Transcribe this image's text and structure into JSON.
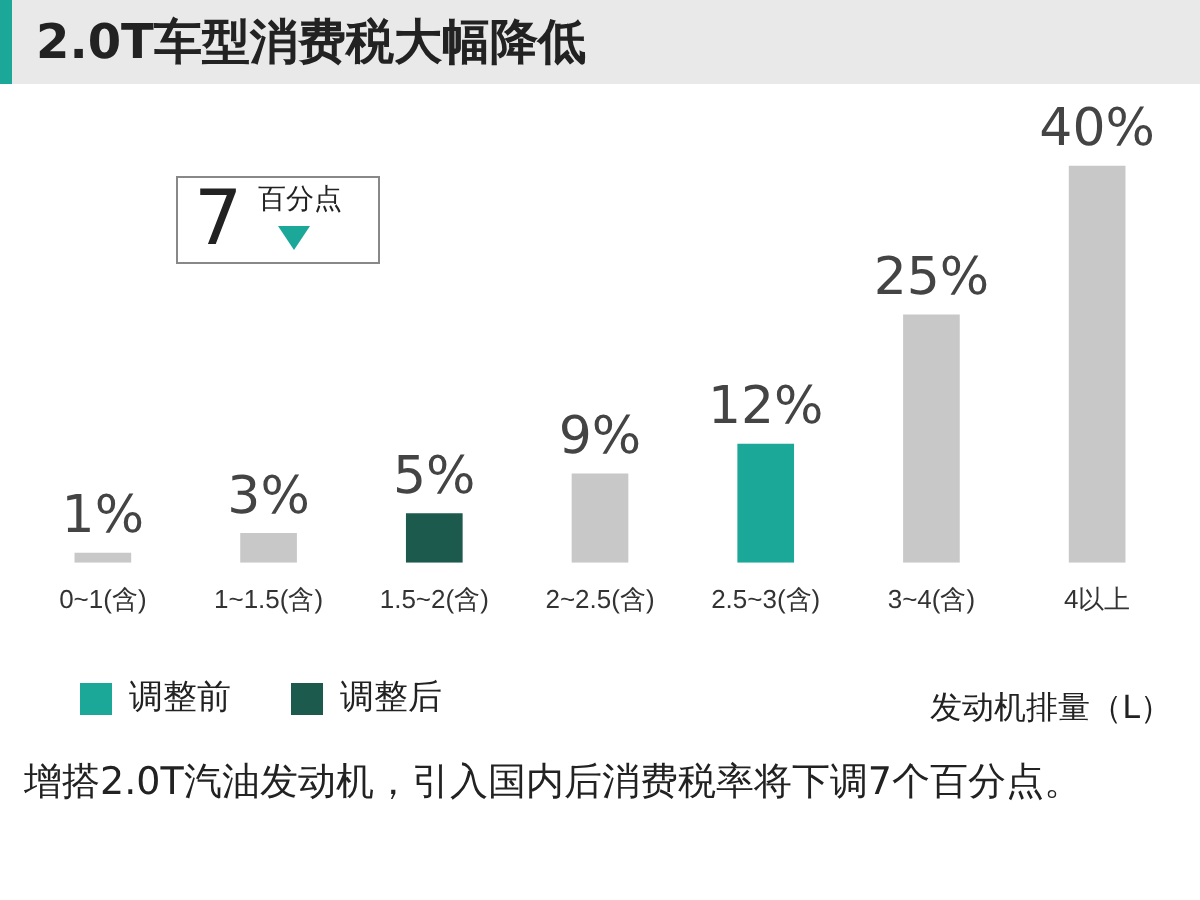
{
  "chart_data": {
    "type": "bar",
    "title": "2.0T车型消费税大幅降低",
    "xlabel": "发动机排量（L）",
    "categories": [
      "0~1(含)",
      "1~1.5(含)",
      "1.5~2(含)",
      "2~2.5(含)",
      "2.5~3(含)",
      "3~4(含)",
      "4以上"
    ],
    "series": [
      {
        "color": "#c8c8c8",
        "values": [
          1,
          3,
          null,
          9,
          null,
          25,
          40
        ],
        "value_labels": [
          "1%",
          "3%",
          null,
          "9%",
          null,
          "25%",
          "40%"
        ]
      },
      {
        "name": "调整前",
        "color": "#1ba898",
        "values": [
          null,
          null,
          null,
          null,
          12,
          null,
          null
        ],
        "value_labels": [
          null,
          null,
          null,
          null,
          "12%",
          null,
          null
        ]
      },
      {
        "name": "调整后",
        "color": "#1b5a4c",
        "values": [
          null,
          null,
          5,
          null,
          null,
          null,
          null
        ],
        "value_labels": [
          null,
          null,
          "5%",
          null,
          null,
          null,
          null
        ]
      }
    ],
    "legend": "bottom left",
    "annotations": [
      "7",
      "百分点",
      "增搭2.0T汽油发动机，引入国内后消费税率将下调7个百分点。"
    ]
  }
}
